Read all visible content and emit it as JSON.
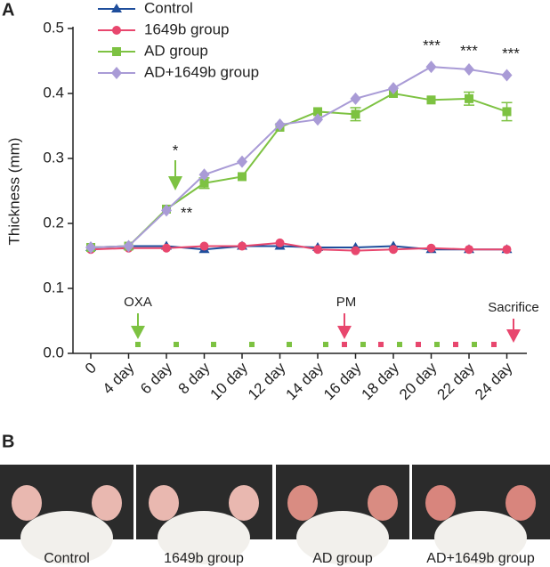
{
  "chart_data": {
    "type": "line",
    "panel_label": "A",
    "ylabel": "Thickness (mm)",
    "categories": [
      "0",
      "4 day",
      "6 day",
      "8 day",
      "10 day",
      "12 day",
      "14 day",
      "16 day",
      "18 day",
      "20 day",
      "22 day",
      "24 day"
    ],
    "series": [
      {
        "name": "Control",
        "color": "#1f4e9c",
        "marker": "triangle",
        "values": [
          0.163,
          0.165,
          0.165,
          0.16,
          0.165,
          0.165,
          0.163,
          0.163,
          0.165,
          0.16,
          0.16,
          0.16
        ]
      },
      {
        "name": "1649b group",
        "color": "#e8476e",
        "marker": "circle",
        "values": [
          0.16,
          0.162,
          0.162,
          0.165,
          0.165,
          0.17,
          0.16,
          0.158,
          0.16,
          0.162,
          0.16,
          0.16
        ]
      },
      {
        "name": "AD group",
        "color": "#7dc242",
        "marker": "square",
        "values": [
          0.163,
          0.165,
          0.222,
          0.262,
          0.272,
          0.348,
          0.372,
          0.368,
          0.4,
          0.39,
          0.392,
          0.372
        ],
        "errors": [
          null,
          null,
          null,
          0.008,
          null,
          null,
          null,
          0.01,
          null,
          null,
          0.01,
          0.014
        ]
      },
      {
        "name": "AD+1649b group",
        "color": "#a99bd6",
        "marker": "diamond",
        "values": [
          0.163,
          0.165,
          0.22,
          0.275,
          0.295,
          0.352,
          0.36,
          0.392,
          0.408,
          0.441,
          0.437,
          0.428
        ]
      }
    ],
    "ylim": [
      0,
      0.5
    ],
    "yticks": [
      {
        "value": 0,
        "label": "0.0"
      },
      0.1,
      0.2,
      0.3,
      0.4,
      0.5
    ],
    "annotations": [
      "*",
      "**",
      "***",
      "***",
      "***"
    ],
    "events": [
      "OXA",
      "PM",
      "Sacrifice"
    ]
  },
  "panel_b": {
    "label": "B",
    "captions": [
      "Control",
      "1649b group",
      "AD group",
      "AD+1649b group"
    ]
  }
}
